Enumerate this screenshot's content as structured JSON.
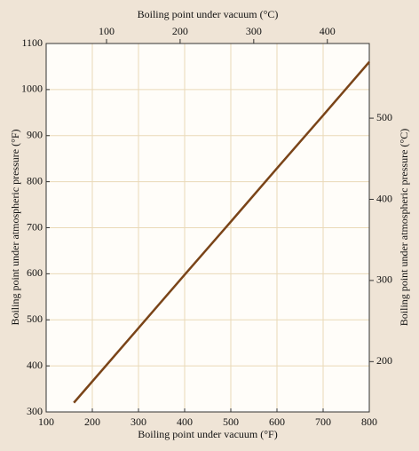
{
  "chart_data": {
    "type": "line",
    "x_label": "Boiling point under vacuum (°F)",
    "y_label": "Boiling point under atmospheric pressure (°F)",
    "x2_label": "Boiling point under vacuum (°C)",
    "y2_label": "Boiling point under atmospheric pressure (°C)",
    "x": [
      160,
      300,
      400,
      500,
      600,
      700,
      800
    ],
    "series": [
      {
        "color": "#7a4418",
        "values": [
          320,
          482,
          598,
          713,
          829,
          944,
          1060
        ]
      }
    ],
    "xlim": [
      100,
      800
    ],
    "xticks": [
      100,
      200,
      300,
      400,
      500,
      600,
      700,
      800
    ],
    "ylim": [
      300,
      1100
    ],
    "yticks": [
      300,
      400,
      500,
      600,
      700,
      800,
      900,
      1000,
      1100
    ],
    "x2lim": [
      18,
      457
    ],
    "x2ticks": [
      100,
      200,
      300,
      400
    ],
    "y2lim": [
      138,
      592
    ],
    "y2ticks": [
      200,
      300,
      400,
      500
    ],
    "grid": true
  }
}
